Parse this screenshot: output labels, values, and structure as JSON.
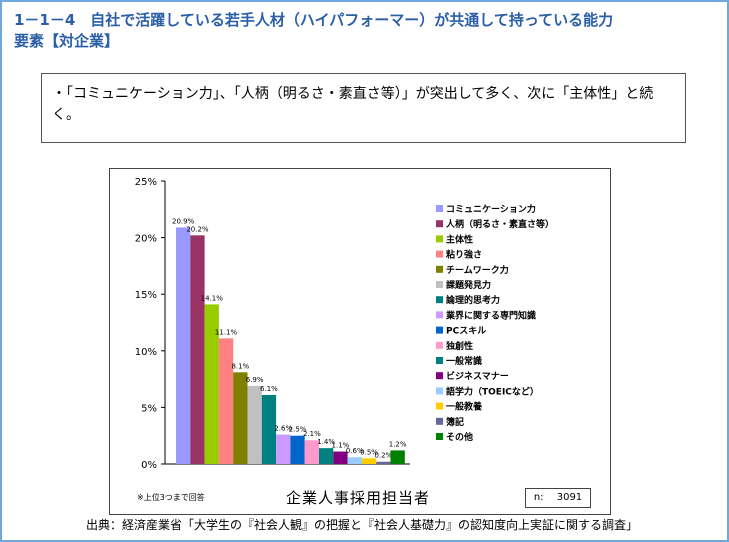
{
  "page": {
    "title_line1": "1－1－4　自社で活躍している若手人材（ハイパフォーマー）が共通して持っている能力",
    "title_line2": "要素【対企業】",
    "summary_text": "・「コミュニケーション力」、「人柄（明るさ・素直さ等）」が突出して多く、次に「主体性」と続く。",
    "footnote": "※上位3つまで回答",
    "n_label": "n:　 3091",
    "source": "出典：経済産業省「大学生の『社会人観』の把握と『社会人基礎力』の認知度向上実証に関する調査」"
  },
  "chart_data": {
    "type": "bar",
    "xlabel": "企業人事採用担当者",
    "ylabel": "",
    "ylim": [
      0,
      25
    ],
    "yticks": [
      "0%",
      "5%",
      "10%",
      "15%",
      "20%",
      "25%"
    ],
    "legend_position": "right",
    "grid": false,
    "series": [
      {
        "name": "コミュニケーション力",
        "value": 20.9,
        "label": "20.9%",
        "color": "#9999ff"
      },
      {
        "name": "人柄（明るさ・素直さ等）",
        "value": 20.2,
        "label": "20.2%",
        "color": "#993366"
      },
      {
        "name": "主体性",
        "value": 14.1,
        "label": "14.1%",
        "color": "#99cc00"
      },
      {
        "name": "粘り強さ",
        "value": 11.1,
        "label": "11.1%",
        "color": "#ff8080"
      },
      {
        "name": "チームワーク力",
        "value": 8.1,
        "label": "8.1%",
        "color": "#808000"
      },
      {
        "name": "課題発見力",
        "value": 6.9,
        "label": "6.9%",
        "color": "#c0c0c0"
      },
      {
        "name": "論理的思考力",
        "value": 6.1,
        "label": "6.1%",
        "color": "#008080"
      },
      {
        "name": "業界に関する専門知識",
        "value": 2.6,
        "label": "2.6%",
        "color": "#cc99ff"
      },
      {
        "name": "PCスキル",
        "value": 2.5,
        "label": "2.5%",
        "color": "#0066cc"
      },
      {
        "name": "独創性",
        "value": 2.1,
        "label": "2.1%",
        "color": "#ff99cc"
      },
      {
        "name": "一般常識",
        "value": 1.4,
        "label": "1.4%",
        "color": "#008080"
      },
      {
        "name": "ビジネスマナー",
        "value": 1.1,
        "label": "1.1%",
        "color": "#800080"
      },
      {
        "name": "語学力（TOEICなど）",
        "value": 0.6,
        "label": "0.6%",
        "color": "#99ccff"
      },
      {
        "name": "一般教養",
        "value": 0.5,
        "label": "0.5%",
        "color": "#ffcc00"
      },
      {
        "name": "簿記",
        "value": 0.2,
        "label": "0.2%",
        "color": "#666699"
      },
      {
        "name": "その他",
        "value": 1.2,
        "label": "1.2%",
        "color": "#008000"
      }
    ]
  }
}
